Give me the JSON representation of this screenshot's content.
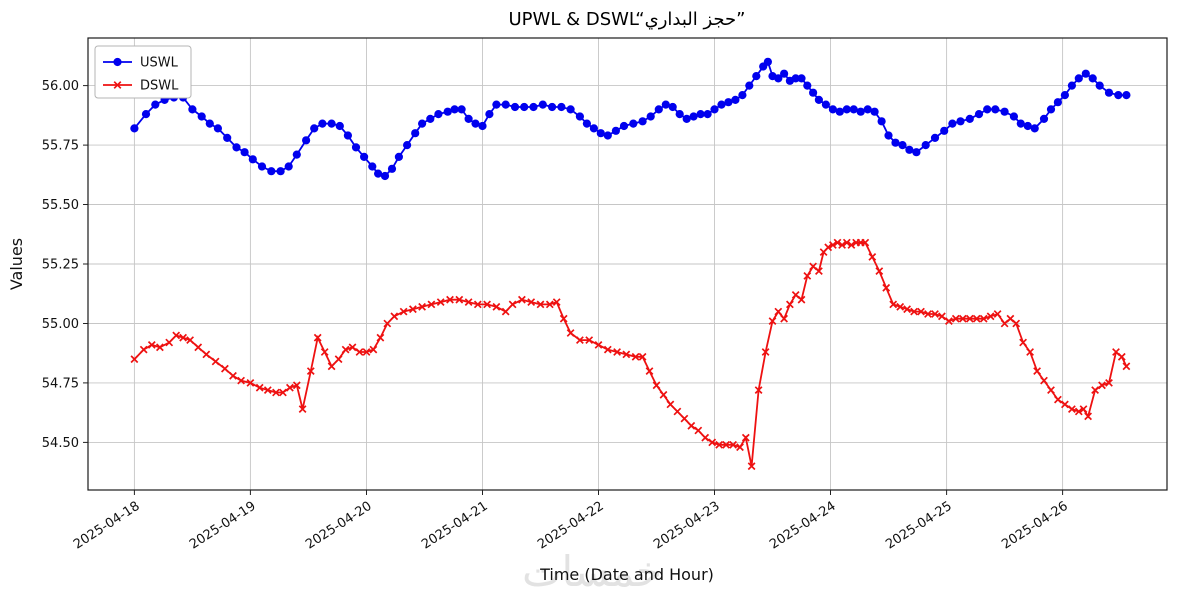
{
  "figure": {
    "title": "UPWL & DSWL“حجز البداري”",
    "xlabel": "Time (Date and Hour)",
    "ylabel": "Values",
    "watermark": "خمسات"
  },
  "chart_data": {
    "type": "line",
    "title": "UPWL & DSWL“حجز البداري”",
    "xlabel": "Time (Date and Hour)",
    "ylabel": "Values",
    "grid": true,
    "legend_position": "upper left",
    "x_unit": "days since 2025-04-18 00:00",
    "xlim": [
      -0.4,
      8.9
    ],
    "ylim": [
      54.3,
      56.2
    ],
    "yticks": [
      54.5,
      54.75,
      55.0,
      55.25,
      55.5,
      55.75,
      56.0
    ],
    "xticks": [
      {
        "value": 0,
        "label": "2025-04-18"
      },
      {
        "value": 1,
        "label": "2025-04-19"
      },
      {
        "value": 2,
        "label": "2025-04-20"
      },
      {
        "value": 3,
        "label": "2025-04-21"
      },
      {
        "value": 4,
        "label": "2025-04-22"
      },
      {
        "value": 5,
        "label": "2025-04-23"
      },
      {
        "value": 6,
        "label": "2025-04-24"
      },
      {
        "value": 7,
        "label": "2025-04-25"
      },
      {
        "value": 8,
        "label": "2025-04-26"
      }
    ],
    "series": [
      {
        "name": "USWL",
        "color": "#0000ee",
        "marker": "circle",
        "points": [
          [
            0.0,
            55.82
          ],
          [
            0.1,
            55.88
          ],
          [
            0.18,
            55.92
          ],
          [
            0.26,
            55.94
          ],
          [
            0.34,
            55.95
          ],
          [
            0.42,
            55.95
          ],
          [
            0.5,
            55.9
          ],
          [
            0.58,
            55.87
          ],
          [
            0.65,
            55.84
          ],
          [
            0.72,
            55.82
          ],
          [
            0.8,
            55.78
          ],
          [
            0.88,
            55.74
          ],
          [
            0.95,
            55.72
          ],
          [
            1.02,
            55.69
          ],
          [
            1.1,
            55.66
          ],
          [
            1.18,
            55.64
          ],
          [
            1.26,
            55.64
          ],
          [
            1.33,
            55.66
          ],
          [
            1.4,
            55.71
          ],
          [
            1.48,
            55.77
          ],
          [
            1.55,
            55.82
          ],
          [
            1.62,
            55.84
          ],
          [
            1.7,
            55.84
          ],
          [
            1.77,
            55.83
          ],
          [
            1.84,
            55.79
          ],
          [
            1.91,
            55.74
          ],
          [
            1.98,
            55.7
          ],
          [
            2.05,
            55.66
          ],
          [
            2.1,
            55.63
          ],
          [
            2.16,
            55.62
          ],
          [
            2.22,
            55.65
          ],
          [
            2.28,
            55.7
          ],
          [
            2.35,
            55.75
          ],
          [
            2.42,
            55.8
          ],
          [
            2.48,
            55.84
          ],
          [
            2.55,
            55.86
          ],
          [
            2.62,
            55.88
          ],
          [
            2.7,
            55.89
          ],
          [
            2.76,
            55.9
          ],
          [
            2.82,
            55.9
          ],
          [
            2.88,
            55.86
          ],
          [
            2.94,
            55.84
          ],
          [
            3.0,
            55.83
          ],
          [
            3.06,
            55.88
          ],
          [
            3.12,
            55.92
          ],
          [
            3.2,
            55.92
          ],
          [
            3.28,
            55.91
          ],
          [
            3.36,
            55.91
          ],
          [
            3.44,
            55.91
          ],
          [
            3.52,
            55.92
          ],
          [
            3.6,
            55.91
          ],
          [
            3.68,
            55.91
          ],
          [
            3.76,
            55.9
          ],
          [
            3.84,
            55.87
          ],
          [
            3.9,
            55.84
          ],
          [
            3.96,
            55.82
          ],
          [
            4.02,
            55.8
          ],
          [
            4.08,
            55.79
          ],
          [
            4.15,
            55.81
          ],
          [
            4.22,
            55.83
          ],
          [
            4.3,
            55.84
          ],
          [
            4.38,
            55.85
          ],
          [
            4.45,
            55.87
          ],
          [
            4.52,
            55.9
          ],
          [
            4.58,
            55.92
          ],
          [
            4.64,
            55.91
          ],
          [
            4.7,
            55.88
          ],
          [
            4.76,
            55.86
          ],
          [
            4.82,
            55.87
          ],
          [
            4.88,
            55.88
          ],
          [
            4.94,
            55.88
          ],
          [
            5.0,
            55.9
          ],
          [
            5.06,
            55.92
          ],
          [
            5.12,
            55.93
          ],
          [
            5.18,
            55.94
          ],
          [
            5.24,
            55.96
          ],
          [
            5.3,
            56.0
          ],
          [
            5.36,
            56.04
          ],
          [
            5.42,
            56.08
          ],
          [
            5.46,
            56.1
          ],
          [
            5.5,
            56.04
          ],
          [
            5.55,
            56.03
          ],
          [
            5.6,
            56.05
          ],
          [
            5.65,
            56.02
          ],
          [
            5.7,
            56.03
          ],
          [
            5.75,
            56.03
          ],
          [
            5.8,
            56.0
          ],
          [
            5.85,
            55.97
          ],
          [
            5.9,
            55.94
          ],
          [
            5.96,
            55.92
          ],
          [
            6.02,
            55.9
          ],
          [
            6.08,
            55.89
          ],
          [
            6.14,
            55.9
          ],
          [
            6.2,
            55.9
          ],
          [
            6.26,
            55.89
          ],
          [
            6.32,
            55.9
          ],
          [
            6.38,
            55.89
          ],
          [
            6.44,
            55.85
          ],
          [
            6.5,
            55.79
          ],
          [
            6.56,
            55.76
          ],
          [
            6.62,
            55.75
          ],
          [
            6.68,
            55.73
          ],
          [
            6.74,
            55.72
          ],
          [
            6.82,
            55.75
          ],
          [
            6.9,
            55.78
          ],
          [
            6.98,
            55.81
          ],
          [
            7.05,
            55.84
          ],
          [
            7.12,
            55.85
          ],
          [
            7.2,
            55.86
          ],
          [
            7.28,
            55.88
          ],
          [
            7.35,
            55.9
          ],
          [
            7.42,
            55.9
          ],
          [
            7.5,
            55.89
          ],
          [
            7.58,
            55.87
          ],
          [
            7.64,
            55.84
          ],
          [
            7.7,
            55.83
          ],
          [
            7.76,
            55.82
          ],
          [
            7.84,
            55.86
          ],
          [
            7.9,
            55.9
          ],
          [
            7.96,
            55.93
          ],
          [
            8.02,
            55.96
          ],
          [
            8.08,
            56.0
          ],
          [
            8.14,
            56.03
          ],
          [
            8.2,
            56.05
          ],
          [
            8.26,
            56.03
          ],
          [
            8.32,
            56.0
          ],
          [
            8.4,
            55.97
          ],
          [
            8.48,
            55.96
          ],
          [
            8.55,
            55.96
          ]
        ]
      },
      {
        "name": "DSWL",
        "color": "#ee1111",
        "marker": "x",
        "points": [
          [
            0.0,
            54.85
          ],
          [
            0.08,
            54.89
          ],
          [
            0.15,
            54.91
          ],
          [
            0.22,
            54.9
          ],
          [
            0.3,
            54.92
          ],
          [
            0.36,
            54.95
          ],
          [
            0.42,
            54.94
          ],
          [
            0.48,
            54.93
          ],
          [
            0.55,
            54.9
          ],
          [
            0.62,
            54.87
          ],
          [
            0.7,
            54.84
          ],
          [
            0.78,
            54.81
          ],
          [
            0.85,
            54.78
          ],
          [
            0.92,
            54.76
          ],
          [
            1.0,
            54.75
          ],
          [
            1.08,
            54.73
          ],
          [
            1.15,
            54.72
          ],
          [
            1.22,
            54.71
          ],
          [
            1.28,
            54.71
          ],
          [
            1.34,
            54.73
          ],
          [
            1.4,
            54.74
          ],
          [
            1.45,
            54.64
          ],
          [
            1.52,
            54.8
          ],
          [
            1.58,
            54.94
          ],
          [
            1.64,
            54.88
          ],
          [
            1.7,
            54.82
          ],
          [
            1.76,
            54.85
          ],
          [
            1.82,
            54.89
          ],
          [
            1.88,
            54.9
          ],
          [
            1.94,
            54.88
          ],
          [
            2.0,
            54.88
          ],
          [
            2.06,
            54.89
          ],
          [
            2.12,
            54.94
          ],
          [
            2.18,
            55.0
          ],
          [
            2.24,
            55.03
          ],
          [
            2.32,
            55.05
          ],
          [
            2.4,
            55.06
          ],
          [
            2.48,
            55.07
          ],
          [
            2.56,
            55.08
          ],
          [
            2.64,
            55.09
          ],
          [
            2.72,
            55.1
          ],
          [
            2.8,
            55.1
          ],
          [
            2.88,
            55.09
          ],
          [
            2.96,
            55.08
          ],
          [
            3.04,
            55.08
          ],
          [
            3.12,
            55.07
          ],
          [
            3.2,
            55.05
          ],
          [
            3.26,
            55.08
          ],
          [
            3.34,
            55.1
          ],
          [
            3.42,
            55.09
          ],
          [
            3.5,
            55.08
          ],
          [
            3.58,
            55.08
          ],
          [
            3.64,
            55.09
          ],
          [
            3.7,
            55.02
          ],
          [
            3.76,
            54.96
          ],
          [
            3.84,
            54.93
          ],
          [
            3.92,
            54.93
          ],
          [
            4.0,
            54.91
          ],
          [
            4.08,
            54.89
          ],
          [
            4.16,
            54.88
          ],
          [
            4.24,
            54.87
          ],
          [
            4.32,
            54.86
          ],
          [
            4.38,
            54.86
          ],
          [
            4.44,
            54.8
          ],
          [
            4.5,
            54.74
          ],
          [
            4.56,
            54.7
          ],
          [
            4.62,
            54.66
          ],
          [
            4.68,
            54.63
          ],
          [
            4.74,
            54.6
          ],
          [
            4.8,
            54.57
          ],
          [
            4.86,
            54.55
          ],
          [
            4.92,
            54.52
          ],
          [
            4.98,
            54.5
          ],
          [
            5.04,
            54.49
          ],
          [
            5.1,
            54.49
          ],
          [
            5.16,
            54.49
          ],
          [
            5.22,
            54.48
          ],
          [
            5.27,
            54.52
          ],
          [
            5.32,
            54.4
          ],
          [
            5.38,
            54.72
          ],
          [
            5.44,
            54.88
          ],
          [
            5.5,
            55.01
          ],
          [
            5.55,
            55.05
          ],
          [
            5.6,
            55.02
          ],
          [
            5.65,
            55.08
          ],
          [
            5.7,
            55.12
          ],
          [
            5.75,
            55.1
          ],
          [
            5.8,
            55.2
          ],
          [
            5.85,
            55.24
          ],
          [
            5.9,
            55.22
          ],
          [
            5.94,
            55.3
          ],
          [
            5.98,
            55.32
          ],
          [
            6.02,
            55.33
          ],
          [
            6.06,
            55.34
          ],
          [
            6.1,
            55.33
          ],
          [
            6.14,
            55.34
          ],
          [
            6.18,
            55.33
          ],
          [
            6.22,
            55.34
          ],
          [
            6.26,
            55.34
          ],
          [
            6.3,
            55.34
          ],
          [
            6.36,
            55.28
          ],
          [
            6.42,
            55.22
          ],
          [
            6.48,
            55.15
          ],
          [
            6.54,
            55.08
          ],
          [
            6.6,
            55.07
          ],
          [
            6.66,
            55.06
          ],
          [
            6.72,
            55.05
          ],
          [
            6.78,
            55.05
          ],
          [
            6.84,
            55.04
          ],
          [
            6.9,
            55.04
          ],
          [
            6.96,
            55.03
          ],
          [
            7.02,
            55.01
          ],
          [
            7.08,
            55.02
          ],
          [
            7.14,
            55.02
          ],
          [
            7.2,
            55.02
          ],
          [
            7.26,
            55.02
          ],
          [
            7.32,
            55.02
          ],
          [
            7.38,
            55.03
          ],
          [
            7.44,
            55.04
          ],
          [
            7.5,
            55.0
          ],
          [
            7.55,
            55.02
          ],
          [
            7.6,
            55.0
          ],
          [
            7.66,
            54.92
          ],
          [
            7.72,
            54.88
          ],
          [
            7.78,
            54.8
          ],
          [
            7.84,
            54.76
          ],
          [
            7.9,
            54.72
          ],
          [
            7.96,
            54.68
          ],
          [
            8.02,
            54.66
          ],
          [
            8.08,
            54.64
          ],
          [
            8.14,
            54.63
          ],
          [
            8.18,
            54.64
          ],
          [
            8.22,
            54.61
          ],
          [
            8.28,
            54.72
          ],
          [
            8.34,
            54.74
          ],
          [
            8.4,
            54.75
          ],
          [
            8.46,
            54.88
          ],
          [
            8.51,
            54.86
          ],
          [
            8.55,
            54.82
          ]
        ]
      }
    ]
  }
}
